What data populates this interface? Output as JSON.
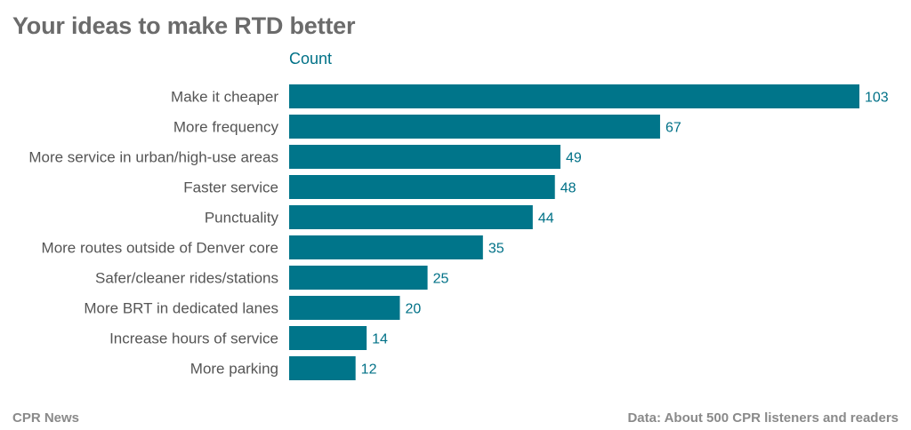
{
  "title": "Your ideas to make RTD better",
  "footer": {
    "source_left": "CPR News",
    "source_right": "Data: About 500 CPR listeners and readers"
  },
  "colors": {
    "bar": "#00758A",
    "value_label": "#007187",
    "title": "#6b6b6b"
  },
  "chart_data": {
    "type": "bar",
    "orientation": "horizontal",
    "title": "Your ideas to make RTD better",
    "series": [
      {
        "name": "Count",
        "values": [
          103,
          67,
          49,
          48,
          44,
          35,
          25,
          20,
          14,
          12
        ]
      }
    ],
    "categories": [
      "Make it cheaper",
      "More frequency",
      "More service in urban/high-use areas",
      "Faster service",
      "Punctuality",
      "More routes outside of Denver core",
      "Safer/cleaner rides/stations",
      "More BRT in dedicated lanes",
      "Increase hours of service",
      "More parking"
    ],
    "values": [
      103,
      67,
      49,
      48,
      44,
      35,
      25,
      20,
      14,
      12
    ],
    "xlim": [
      0,
      103
    ],
    "grid": false,
    "data_labels": true
  }
}
